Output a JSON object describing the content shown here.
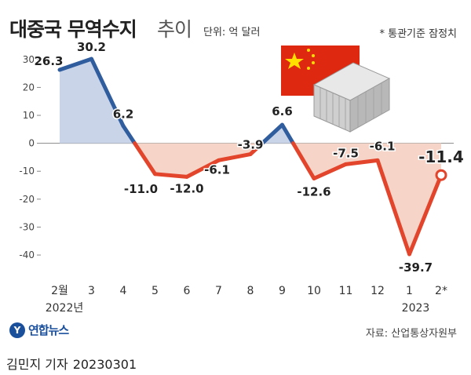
{
  "header": {
    "title": "대중국 무역수지",
    "title_suffix": "추이",
    "unit": "단위: 억 달러",
    "note": "* 통관기준 잠정치"
  },
  "footer": {
    "logo_text": "연합뉴스",
    "source": "자료: 산업통상자원부",
    "byline_name": "김민지 기자",
    "byline_date": "20230301"
  },
  "illustration": {
    "flag": "china-flag-icon",
    "object": "shipping-container-icon",
    "flag_color": "#de2910",
    "star_color": "#ffde00"
  },
  "colors": {
    "positive": "#2f5d9e",
    "negative": "#e2452b",
    "positive_fill": "#c9d4e9",
    "negative_fill": "#f6d4c8"
  },
  "chart_data": {
    "type": "line",
    "categories": [
      "2월",
      "3",
      "4",
      "5",
      "6",
      "7",
      "8",
      "9",
      "10",
      "11",
      "12",
      "1",
      "2*"
    ],
    "year_labels": [
      "2022년",
      "2023"
    ],
    "values": [
      26.3,
      30.2,
      6.2,
      -11.0,
      -12.0,
      -6.1,
      -3.9,
      6.6,
      -12.6,
      -7.5,
      -6.1,
      -39.7,
      -11.4
    ],
    "data_labels": [
      "26.3",
      "30.2",
      "6.2",
      "-11.0",
      "-12.0",
      "-6.1",
      "-3.9",
      "6.6",
      "-12.6",
      "-7.5",
      "-6.1",
      "-39.7",
      "-11.4"
    ],
    "yticks": [
      30,
      20,
      10,
      0,
      -10,
      -20,
      -30,
      -40
    ],
    "ylim": [
      -47,
      35
    ],
    "area_fill": true,
    "grid": false,
    "last_point_highlighted": true
  }
}
